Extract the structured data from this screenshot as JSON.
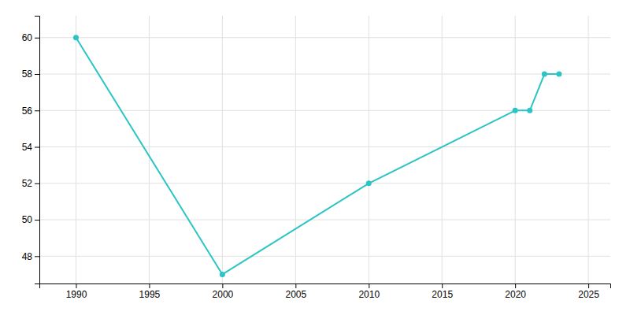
{
  "chart_data": {
    "type": "line",
    "x": [
      1990,
      2000,
      2010,
      2020,
      2021,
      2022,
      2023
    ],
    "values": [
      60,
      47,
      52,
      56,
      56,
      58,
      58
    ],
    "color": "#2CC4C4",
    "marker": "circle",
    "xlim": [
      1987.5,
      2026.5
    ],
    "ylim": [
      46.5,
      61.2
    ],
    "xticks": [
      1990,
      1995,
      2000,
      2005,
      2010,
      2015,
      2020,
      2025
    ],
    "yticks": [
      48,
      50,
      52,
      54,
      56,
      58,
      60
    ],
    "grid": true
  }
}
